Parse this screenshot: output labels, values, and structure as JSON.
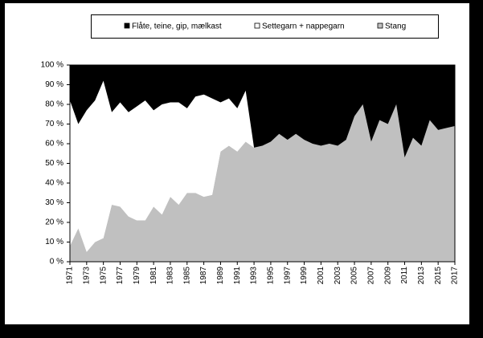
{
  "chart_data": {
    "type": "stacked_area",
    "x": [
      1971,
      1972,
      1973,
      1974,
      1975,
      1976,
      1977,
      1978,
      1979,
      1980,
      1981,
      1982,
      1983,
      1984,
      1985,
      1986,
      1987,
      1988,
      1989,
      1990,
      1991,
      1992,
      1993,
      1994,
      1995,
      1996,
      1997,
      1998,
      1999,
      2000,
      2001,
      2002,
      2003,
      2004,
      2005,
      2006,
      2007,
      2008,
      2009,
      2010,
      2011,
      2012,
      2013,
      2014,
      2015,
      2016,
      2017
    ],
    "series": [
      {
        "name": "Flåte, teine, gip, mælkast",
        "color": "#000000",
        "values": [
          18,
          30,
          23,
          18,
          8,
          24,
          19,
          24,
          21,
          18,
          23,
          20,
          19,
          19,
          22,
          16,
          15,
          17,
          19,
          17,
          22,
          13,
          42,
          41,
          39,
          35,
          38,
          35,
          38,
          40,
          41,
          40,
          41,
          38,
          26,
          20,
          39,
          28,
          30,
          20,
          47,
          37,
          41,
          28,
          33,
          32,
          31
        ]
      },
      {
        "name": "Settegarn + nappegarn",
        "color": "#ffffff",
        "values": [
          74,
          53,
          72,
          72,
          80,
          47,
          53,
          53,
          58,
          61,
          49,
          56,
          48,
          52,
          43,
          49,
          52,
          49,
          25,
          24,
          22,
          26,
          0,
          0,
          0,
          0,
          0,
          0,
          0,
          0,
          0,
          0,
          0,
          0,
          0,
          0,
          0,
          0,
          0,
          0,
          0,
          0,
          0,
          0,
          0,
          0,
          0
        ]
      },
      {
        "name": "Stang",
        "color": "#c0c0c0",
        "values": [
          8,
          17,
          5,
          10,
          12,
          29,
          28,
          23,
          21,
          21,
          28,
          24,
          33,
          29,
          35,
          35,
          33,
          34,
          56,
          59,
          56,
          61,
          58,
          59,
          61,
          65,
          62,
          65,
          62,
          60,
          59,
          60,
          59,
          62,
          74,
          80,
          61,
          72,
          70,
          80,
          53,
          63,
          59,
          72,
          67,
          68,
          69
        ]
      }
    ],
    "xlim": [
      1971,
      2017
    ],
    "xticks": [
      1971,
      1973,
      1975,
      1977,
      1979,
      1981,
      1983,
      1985,
      1987,
      1989,
      1991,
      1993,
      1995,
      1997,
      1999,
      2001,
      2003,
      2005,
      2007,
      2009,
      2011,
      2013,
      2015,
      2017
    ],
    "ylim": [
      0,
      100
    ],
    "yticks": [
      {
        "value": 0,
        "label": "0 %"
      },
      {
        "value": 10,
        "label": "10 %"
      },
      {
        "value": 20,
        "label": "20 %"
      },
      {
        "value": 30,
        "label": "30 %"
      },
      {
        "value": 40,
        "label": "40 %"
      },
      {
        "value": 50,
        "label": "50 %"
      },
      {
        "value": 60,
        "label": "60 %"
      },
      {
        "value": 70,
        "label": "70 %"
      },
      {
        "value": 80,
        "label": "80 %"
      },
      {
        "value": 90,
        "label": "90 %"
      },
      {
        "value": 100,
        "label": "100 %"
      }
    ],
    "legend": "top"
  }
}
